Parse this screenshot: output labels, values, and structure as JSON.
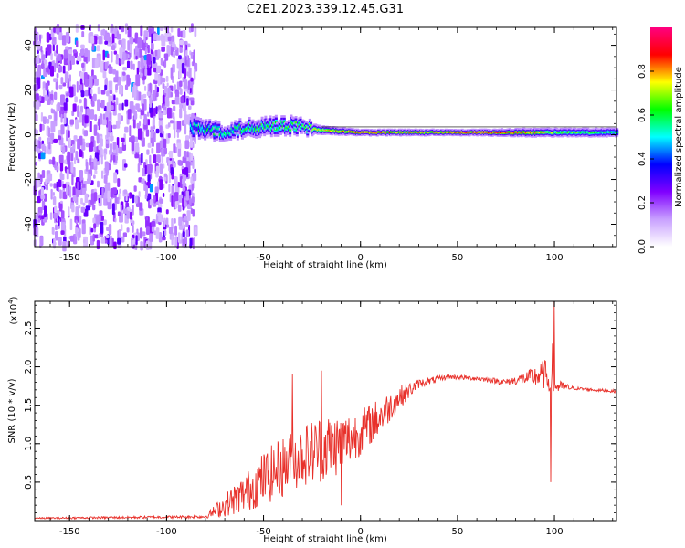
{
  "title": "C2E1.2023.339.12.45.G31",
  "chart_data": [
    {
      "type": "heatmap",
      "xlabel": "Height of straight line (km)",
      "ylabel": "Frequency (Hz)",
      "xlim": [
        -168,
        132
      ],
      "ylim": [
        -50,
        48
      ],
      "xticks": [
        -150,
        -100,
        -50,
        0,
        50,
        100
      ],
      "yticks": [
        -40,
        -20,
        0,
        20,
        40
      ],
      "colorbar": {
        "label": "Normalized spectral amplitude",
        "range": [
          0.0,
          1.0
        ],
        "ticks": [
          "0.0",
          "0.2",
          "0.4",
          "0.6",
          "0.8"
        ],
        "colors": [
          "#ffffff",
          "#c8a0ff",
          "#8000ff",
          "#0000ff",
          "#00ffff",
          "#00ff00",
          "#ffff00",
          "#ff0000",
          "#ff0080"
        ]
      },
      "noise_region_x": [
        -168,
        -85
      ],
      "ridge": [
        {
          "x": -88,
          "f": 3.0,
          "width": 8,
          "amp": 0.45
        },
        {
          "x": -70,
          "f": 1.5,
          "width": 6,
          "amp": 0.5
        },
        {
          "x": -50,
          "f": 4.0,
          "width": 7,
          "amp": 0.55
        },
        {
          "x": -35,
          "f": 4.0,
          "width": 6,
          "amp": 0.55
        },
        {
          "x": -20,
          "f": 2.0,
          "width": 4,
          "amp": 0.65
        },
        {
          "x": 0,
          "f": 1.0,
          "width": 3,
          "amp": 0.8
        },
        {
          "x": 25,
          "f": 1.0,
          "width": 3,
          "amp": 0.7
        },
        {
          "x": 60,
          "f": 1.0,
          "width": 3,
          "amp": 0.8
        },
        {
          "x": 85,
          "f": 1.0,
          "width": 4,
          "amp": 0.75
        },
        {
          "x": 100,
          "f": 1.0,
          "width": 4,
          "amp": 0.6
        },
        {
          "x": 132,
          "f": 1.0,
          "width": 4,
          "amp": 0.5
        }
      ]
    },
    {
      "type": "line",
      "xlabel": "Height of straight line (km)",
      "ylabel": "SNR (10 * v/v)",
      "scale_label": "(x10",
      "scale_exponent": "4",
      "scale_close": ")",
      "xlim": [
        -168,
        132
      ],
      "ylim": [
        0.0,
        2.85
      ],
      "xticks": [
        -150,
        -100,
        -50,
        0,
        50,
        100
      ],
      "yticks": [
        "0.5",
        "1.0",
        "1.5",
        "2.0",
        "2.5"
      ],
      "line_color": "#e8302a",
      "envelope": [
        {
          "x": -168,
          "y": 0.03,
          "noise": 0.01
        },
        {
          "x": -80,
          "y": 0.05,
          "noise": 0.02
        },
        {
          "x": -70,
          "y": 0.2,
          "noise": 0.15
        },
        {
          "x": -60,
          "y": 0.35,
          "noise": 0.25
        },
        {
          "x": -50,
          "y": 0.55,
          "noise": 0.35
        },
        {
          "x": -40,
          "y": 0.7,
          "noise": 0.4
        },
        {
          "x": -30,
          "y": 0.85,
          "noise": 0.4
        },
        {
          "x": -20,
          "y": 0.95,
          "noise": 0.45
        },
        {
          "x": -10,
          "y": 1.0,
          "noise": 0.4
        },
        {
          "x": 0,
          "y": 1.15,
          "noise": 0.3
        },
        {
          "x": 10,
          "y": 1.35,
          "noise": 0.25
        },
        {
          "x": 20,
          "y": 1.6,
          "noise": 0.15
        },
        {
          "x": 30,
          "y": 1.78,
          "noise": 0.06
        },
        {
          "x": 45,
          "y": 1.87,
          "noise": 0.03
        },
        {
          "x": 60,
          "y": 1.85,
          "noise": 0.03
        },
        {
          "x": 75,
          "y": 1.8,
          "noise": 0.04
        },
        {
          "x": 85,
          "y": 1.85,
          "noise": 0.08
        },
        {
          "x": 95,
          "y": 1.9,
          "noise": 0.2
        },
        {
          "x": 100,
          "y": 1.75,
          "noise": 0.1
        },
        {
          "x": 110,
          "y": 1.72,
          "noise": 0.02
        },
        {
          "x": 132,
          "y": 1.68,
          "noise": 0.02
        }
      ],
      "spikes": [
        {
          "x": -35,
          "y": 1.9
        },
        {
          "x": -20,
          "y": 1.95
        },
        {
          "x": -10,
          "y": 0.2
        },
        {
          "x": 98,
          "y": 0.5
        },
        {
          "x": 100,
          "y": 2.85
        },
        {
          "x": 99,
          "y": 2.3
        }
      ]
    }
  ]
}
